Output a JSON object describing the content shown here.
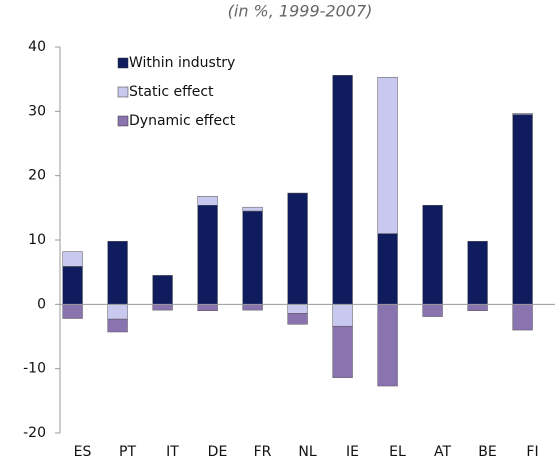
{
  "chart_data": {
    "type": "stacked-bar",
    "title": "(in %, 1999-2007)",
    "categories": [
      "ES",
      "PT",
      "IT",
      "DE",
      "FR",
      "NL",
      "IE",
      "EL",
      "AT",
      "BE",
      "FI"
    ],
    "series": [
      {
        "name": "Within industry",
        "color": "#0f1d5e",
        "values": [
          5.9,
          9.8,
          4.5,
          15.4,
          14.5,
          17.3,
          35.6,
          11.0,
          15.4,
          9.8,
          29.5
        ]
      },
      {
        "name": "Static effect",
        "color": "#c9c9ef",
        "values": [
          2.3,
          -2.3,
          0,
          1.4,
          0.6,
          -1.4,
          -3.4,
          24.3,
          0,
          0,
          0.2
        ]
      },
      {
        "name": "Dynamic effect",
        "color": "#8a74b0",
        "values": [
          -2.2,
          -2.0,
          -0.9,
          -1.0,
          -0.9,
          -1.7,
          -8.0,
          -12.7,
          -1.9,
          -1.0,
          -4.0
        ]
      }
    ],
    "ylim": [
      -20,
      40
    ],
    "yticks": [
      -20,
      -10,
      0,
      10,
      20,
      30,
      40
    ],
    "legend": "upper left"
  }
}
